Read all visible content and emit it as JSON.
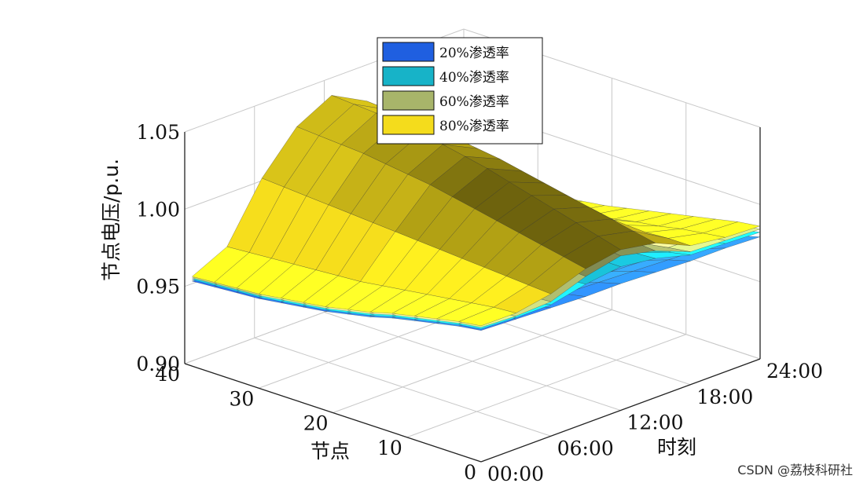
{
  "chart_data": {
    "type": "surface3d",
    "zlabel": "节点电压/p.u.",
    "xlabel": "节点",
    "ylabel": "时刻",
    "zticks": [
      "0.90",
      "0.95",
      "1.00",
      "1.05"
    ],
    "xticks": [
      "0",
      "10",
      "20",
      "30",
      "40"
    ],
    "yticks": [
      "00:00",
      "06:00",
      "12:00",
      "18:00",
      "24:00"
    ],
    "zlim": [
      0.9,
      1.05
    ],
    "xlim": [
      0,
      40
    ],
    "ylim": [
      0,
      24
    ],
    "grid": true,
    "legend_position": "top-center",
    "nodes": [
      0,
      3,
      6,
      9,
      12,
      15,
      18,
      21,
      24,
      27,
      30,
      33,
      36,
      39
    ],
    "hours": [
      0,
      3,
      6,
      9,
      12,
      15,
      18,
      21,
      24
    ],
    "series": [
      {
        "name": "20%渗透率",
        "color": "#1f5fe0",
        "voltage": [
          [
            0.985,
            0.983,
            0.98,
            0.977,
            0.974,
            0.97,
            0.967,
            0.964,
            0.962,
            0.96,
            0.958,
            0.957,
            0.956,
            0.955
          ],
          [
            0.984,
            0.982,
            0.978,
            0.975,
            0.971,
            0.967,
            0.964,
            0.961,
            0.959,
            0.957,
            0.955,
            0.954,
            0.953,
            0.952
          ],
          [
            0.983,
            0.98,
            0.976,
            0.972,
            0.968,
            0.964,
            0.96,
            0.957,
            0.955,
            0.953,
            0.951,
            0.95,
            0.949,
            0.948
          ],
          [
            0.982,
            0.979,
            0.975,
            0.97,
            0.966,
            0.962,
            0.958,
            0.955,
            0.952,
            0.95,
            0.948,
            0.947,
            0.946,
            0.945
          ],
          [
            0.982,
            0.978,
            0.973,
            0.968,
            0.963,
            0.959,
            0.955,
            0.952,
            0.949,
            0.947,
            0.945,
            0.944,
            0.943,
            0.942
          ],
          [
            0.981,
            0.977,
            0.972,
            0.967,
            0.962,
            0.958,
            0.954,
            0.95,
            0.948,
            0.946,
            0.944,
            0.943,
            0.942,
            0.941
          ],
          [
            0.98,
            0.976,
            0.971,
            0.966,
            0.961,
            0.957,
            0.953,
            0.949,
            0.946,
            0.944,
            0.942,
            0.941,
            0.94,
            0.939
          ],
          [
            0.98,
            0.975,
            0.97,
            0.965,
            0.96,
            0.956,
            0.952,
            0.948,
            0.945,
            0.943,
            0.941,
            0.94,
            0.939,
            0.938
          ],
          [
            0.979,
            0.975,
            0.969,
            0.964,
            0.959,
            0.955,
            0.951,
            0.947,
            0.944,
            0.942,
            0.94,
            0.939,
            0.938,
            0.937
          ]
        ]
      },
      {
        "name": "40%渗透率",
        "color": "#17b3c8",
        "voltage": [
          [
            0.986,
            0.984,
            0.981,
            0.978,
            0.975,
            0.971,
            0.968,
            0.965,
            0.963,
            0.961,
            0.959,
            0.958,
            0.957,
            0.956
          ],
          [
            0.985,
            0.983,
            0.98,
            0.976,
            0.973,
            0.969,
            0.966,
            0.963,
            0.961,
            0.959,
            0.957,
            0.956,
            0.955,
            0.954
          ],
          [
            0.985,
            0.982,
            0.978,
            0.975,
            0.971,
            0.967,
            0.964,
            0.961,
            0.958,
            0.956,
            0.955,
            0.954,
            0.953,
            0.952
          ],
          [
            0.99,
            0.989,
            0.988,
            0.987,
            0.986,
            0.985,
            0.984,
            0.983,
            0.982,
            0.981,
            0.98,
            0.979,
            0.978,
            0.977
          ],
          [
            0.993,
            0.993,
            0.993,
            0.993,
            0.993,
            0.993,
            0.993,
            0.993,
            0.993,
            0.993,
            0.993,
            0.993,
            0.993,
            0.993
          ],
          [
            0.99,
            0.989,
            0.988,
            0.987,
            0.986,
            0.985,
            0.984,
            0.983,
            0.982,
            0.981,
            0.98,
            0.979,
            0.978,
            0.977
          ],
          [
            0.984,
            0.981,
            0.977,
            0.973,
            0.969,
            0.966,
            0.962,
            0.959,
            0.956,
            0.954,
            0.952,
            0.951,
            0.95,
            0.949
          ],
          [
            0.983,
            0.98,
            0.976,
            0.972,
            0.968,
            0.965,
            0.961,
            0.958,
            0.955,
            0.953,
            0.951,
            0.95,
            0.949,
            0.948
          ],
          [
            0.982,
            0.979,
            0.975,
            0.971,
            0.967,
            0.964,
            0.96,
            0.957,
            0.954,
            0.952,
            0.95,
            0.949,
            0.948,
            0.947
          ]
        ]
      },
      {
        "name": "60%渗透率",
        "color": "#a8b56a",
        "voltage": [
          [
            0.987,
            0.985,
            0.982,
            0.979,
            0.976,
            0.972,
            0.969,
            0.966,
            0.964,
            0.962,
            0.96,
            0.959,
            0.958,
            0.957
          ],
          [
            0.986,
            0.984,
            0.981,
            0.978,
            0.975,
            0.971,
            0.968,
            0.965,
            0.963,
            0.961,
            0.959,
            0.958,
            0.957,
            0.956
          ],
          [
            0.987,
            0.986,
            0.984,
            0.983,
            0.981,
            0.98,
            0.978,
            0.977,
            0.976,
            0.975,
            0.974,
            0.973,
            0.972,
            0.971
          ],
          [
            0.995,
            0.996,
            0.997,
            0.998,
            0.999,
            1.0,
            1.001,
            1.002,
            1.003,
            1.004,
            1.005,
            1.006,
            1.006,
            1.007
          ],
          [
            1.0,
            1.002,
            1.004,
            1.006,
            1.008,
            1.01,
            1.012,
            1.014,
            1.015,
            1.016,
            1.017,
            1.018,
            1.018,
            1.019
          ],
          [
            0.995,
            0.996,
            0.997,
            0.998,
            0.999,
            1.0,
            1.001,
            1.002,
            1.003,
            1.004,
            1.005,
            1.006,
            1.006,
            1.007
          ],
          [
            0.986,
            0.984,
            0.981,
            0.978,
            0.975,
            0.972,
            0.969,
            0.966,
            0.964,
            0.962,
            0.96,
            0.959,
            0.958,
            0.957
          ],
          [
            0.985,
            0.983,
            0.98,
            0.977,
            0.974,
            0.971,
            0.968,
            0.965,
            0.963,
            0.961,
            0.959,
            0.958,
            0.957,
            0.956
          ],
          [
            0.984,
            0.982,
            0.979,
            0.976,
            0.973,
            0.97,
            0.967,
            0.964,
            0.962,
            0.96,
            0.958,
            0.957,
            0.956,
            0.955
          ]
        ]
      },
      {
        "name": "80%渗透率",
        "color": "#f4dc1c",
        "voltage": [
          [
            0.988,
            0.986,
            0.983,
            0.98,
            0.977,
            0.973,
            0.97,
            0.967,
            0.965,
            0.963,
            0.961,
            0.96,
            0.959,
            0.958
          ],
          [
            0.988,
            0.987,
            0.985,
            0.983,
            0.981,
            0.979,
            0.977,
            0.975,
            0.974,
            0.973,
            0.972,
            0.971,
            0.97,
            0.969
          ],
          [
            0.992,
            0.993,
            0.994,
            0.995,
            0.996,
            0.997,
            0.998,
            0.999,
            1.0,
            1.001,
            1.002,
            1.003,
            1.004,
            1.005
          ],
          [
            1.0,
            1.003,
            1.006,
            1.009,
            1.012,
            1.015,
            1.018,
            1.021,
            1.023,
            1.025,
            1.027,
            1.028,
            1.029,
            1.03
          ],
          [
            1.004,
            1.008,
            1.012,
            1.016,
            1.02,
            1.024,
            1.028,
            1.031,
            1.034,
            1.036,
            1.038,
            1.04,
            1.041,
            1.042
          ],
          [
            1.0,
            1.003,
            1.006,
            1.009,
            1.012,
            1.015,
            1.018,
            1.021,
            1.023,
            1.025,
            1.027,
            1.028,
            1.029,
            1.03
          ],
          [
            0.99,
            0.99,
            0.989,
            0.989,
            0.988,
            0.988,
            0.987,
            0.987,
            0.986,
            0.986,
            0.985,
            0.985,
            0.984,
            0.984
          ],
          [
            0.987,
            0.985,
            0.983,
            0.98,
            0.978,
            0.975,
            0.973,
            0.97,
            0.968,
            0.966,
            0.964,
            0.963,
            0.962,
            0.961
          ],
          [
            0.986,
            0.984,
            0.981,
            0.978,
            0.975,
            0.972,
            0.969,
            0.966,
            0.964,
            0.962,
            0.96,
            0.959,
            0.958,
            0.957
          ]
        ]
      }
    ]
  },
  "watermark": "CSDN @荔枝科研社"
}
